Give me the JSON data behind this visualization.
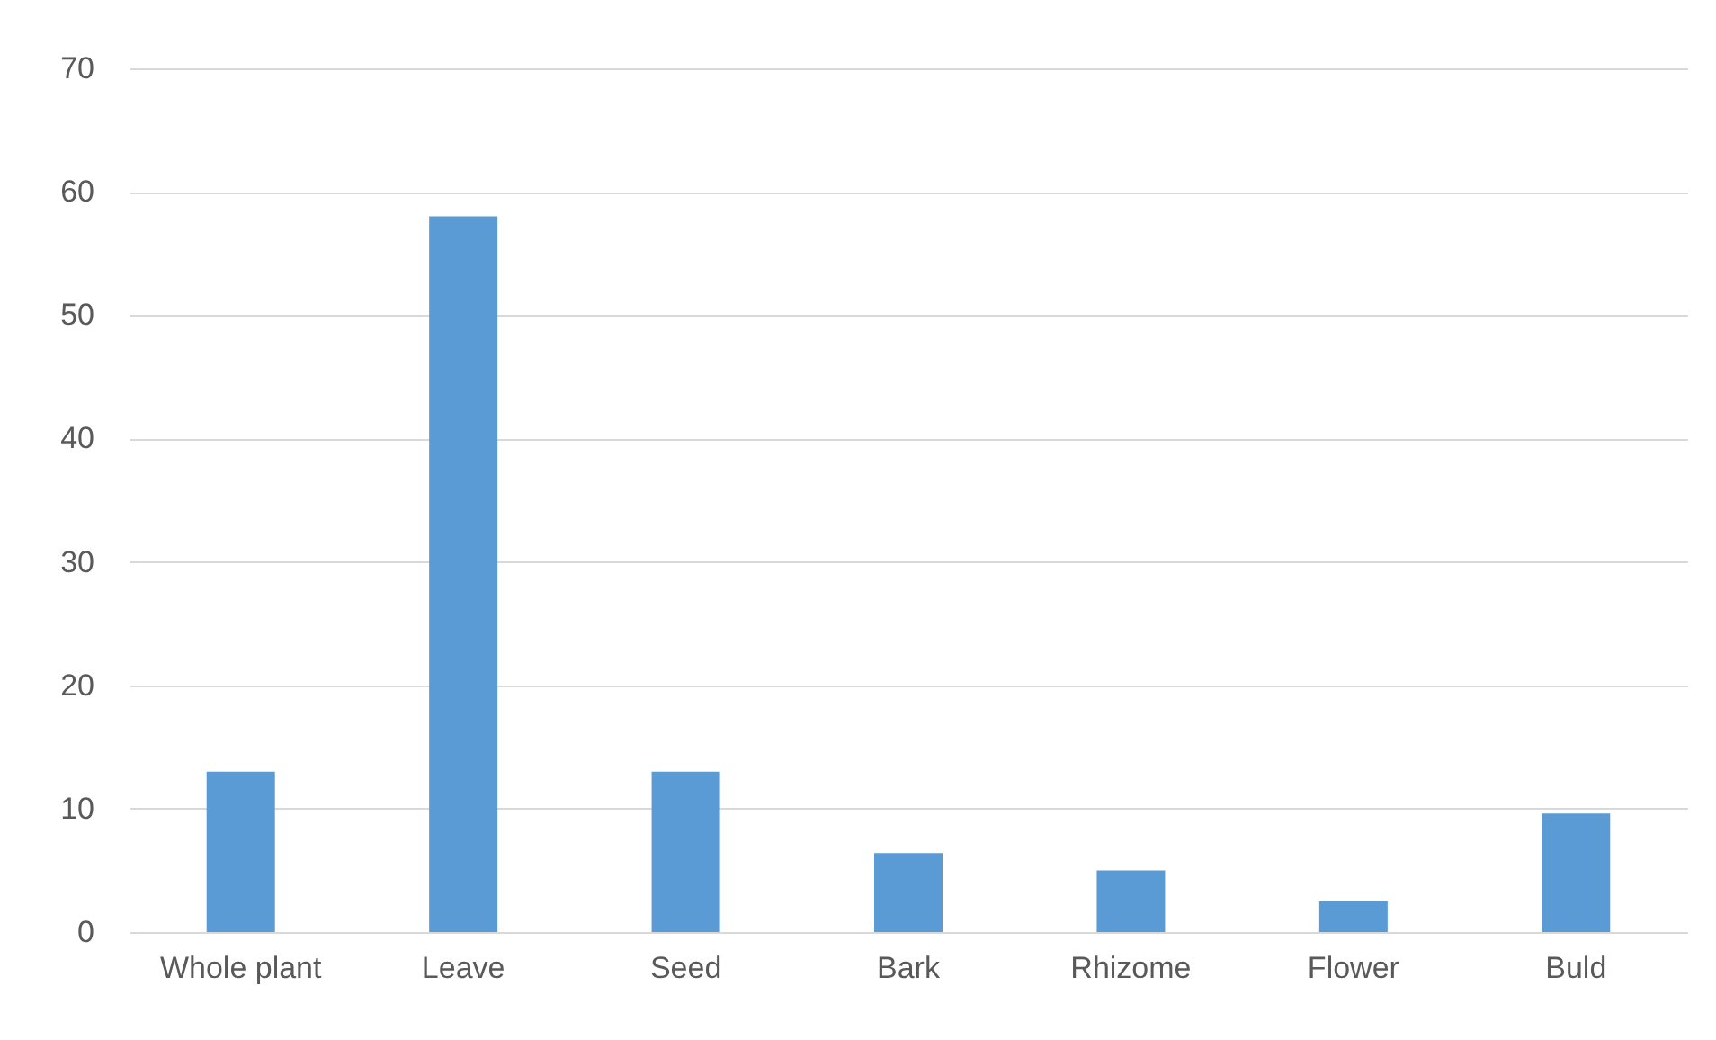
{
  "chart_data": {
    "type": "bar",
    "categories": [
      "Whole plant",
      "Leave",
      "Seed",
      "Bark",
      "Rhizome",
      "Flower",
      "Buld"
    ],
    "values": [
      13,
      58,
      13,
      6.4,
      5,
      2.5,
      9.6
    ],
    "color": "#5b9bd5",
    "ylim": [
      0,
      70
    ],
    "yticks": [
      0,
      10,
      20,
      30,
      40,
      50,
      60,
      70
    ],
    "grid": "y"
  }
}
